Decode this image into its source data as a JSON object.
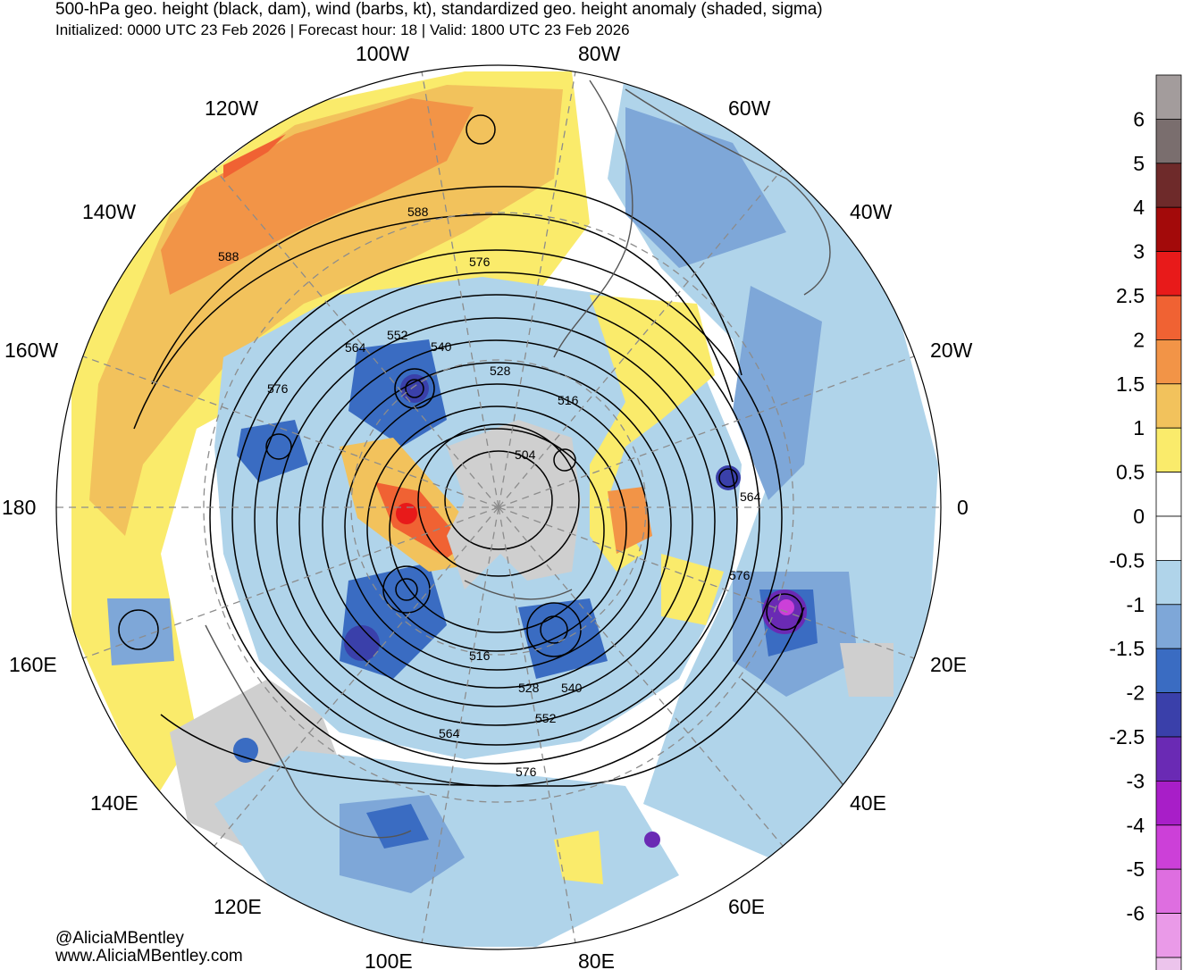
{
  "title": "500-hPa geo. height (black, dam), wind (barbs, kt), standardized geo. height anomaly (shaded, sigma)",
  "subtitle": "Initialized: 0000 UTC 23 Feb 2026 | Forecast hour: 18 | Valid: 1800 UTC 23 Feb 2026",
  "credits": [
    "@AliciaMBentley",
    "www.AliciaMBentley.com"
  ],
  "longitude_labels": [
    "100W",
    "80W",
    "120W",
    "60W",
    "140W",
    "40W",
    "160W",
    "20W",
    "180",
    "0",
    "160E",
    "20E",
    "140E",
    "40E",
    "120E",
    "60E",
    "100E",
    "80E"
  ],
  "contour_labels": [
    "588",
    "576",
    "588",
    "564",
    "552",
    "540",
    "528",
    "576",
    "516",
    "504",
    "564",
    "576",
    "516",
    "528",
    "540",
    "552",
    "564",
    "576"
  ],
  "colorbar": {
    "labels": [
      "6",
      "5",
      "4",
      "3",
      "2.5",
      "2",
      "1.5",
      "1",
      "0.5",
      "0",
      "-0.5",
      "-1",
      "-1.5",
      "-2",
      "-2.5",
      "-3",
      "-4",
      "-5",
      "-6"
    ],
    "colors": [
      "#a39c9c",
      "#7a6e6e",
      "#6e2a2a",
      "#a30a0a",
      "#e81a1a",
      "#f06233",
      "#f29447",
      "#f2c25c",
      "#faeb6b",
      "#ffffff",
      "#ffffff",
      "#b0d4ea",
      "#7ea7d8",
      "#3a6cc2",
      "#3a40aa",
      "#6a2ab4",
      "#a81ec8",
      "#cc40d8",
      "#de6ee0",
      "#ea9ae8",
      "#ecc4ec"
    ]
  },
  "colors": {
    "land_gray": "#cfcfcf",
    "contour": "#000000"
  }
}
